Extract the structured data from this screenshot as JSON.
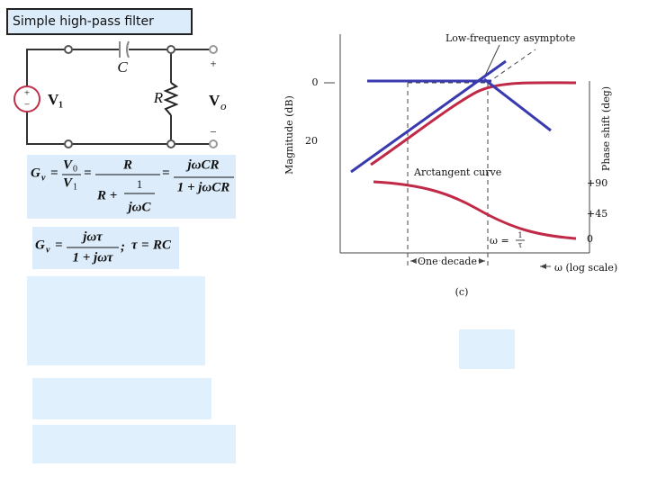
{
  "title": "Simple high-pass filter",
  "circuit": {
    "capacitor": "C",
    "resistor": "R",
    "source": {
      "name": "V",
      "subscript": "1",
      "plus": "+",
      "minus": "−"
    },
    "output": {
      "name": "V",
      "subscript": "o",
      "plus": "+",
      "minus": "−"
    }
  },
  "equation_1": {
    "lhs": "G",
    "lhs_sub": "v",
    "equals": [
      "=",
      "=",
      "="
    ],
    "num1": "V",
    "num1_sub": "0",
    "den1": "V",
    "den1_sub": "1",
    "num2": "R",
    "den2": "R +",
    "den2_num": "1",
    "den2_den": "jωC",
    "num3": "jωCR",
    "den3": "1 + jωCR"
  },
  "equation_2": {
    "lhs": "G",
    "lhs_sub": "v",
    "equals": [
      "=",
      "="
    ],
    "num": "jωτ",
    "den": "1 + jωτ",
    "sep": ";",
    "tau": "τ",
    "rhs": "RC"
  },
  "plot": {
    "asymptote_label": "Low-frequency asymptote",
    "y_label": "Magnitude (dB)",
    "y2_label": "Phase shift (deg)",
    "magnitude_ticks": [
      "0",
      "20"
    ],
    "phase_ticks": [
      "+90",
      "+45",
      "0"
    ],
    "curve_label": "Arctangent curve",
    "corner_label": {
      "omega": "ω =",
      "num": "1",
      "den": "τ"
    },
    "decade_label": "One decade",
    "x_label": "ω (log scale)",
    "caption": "(c)"
  }
}
